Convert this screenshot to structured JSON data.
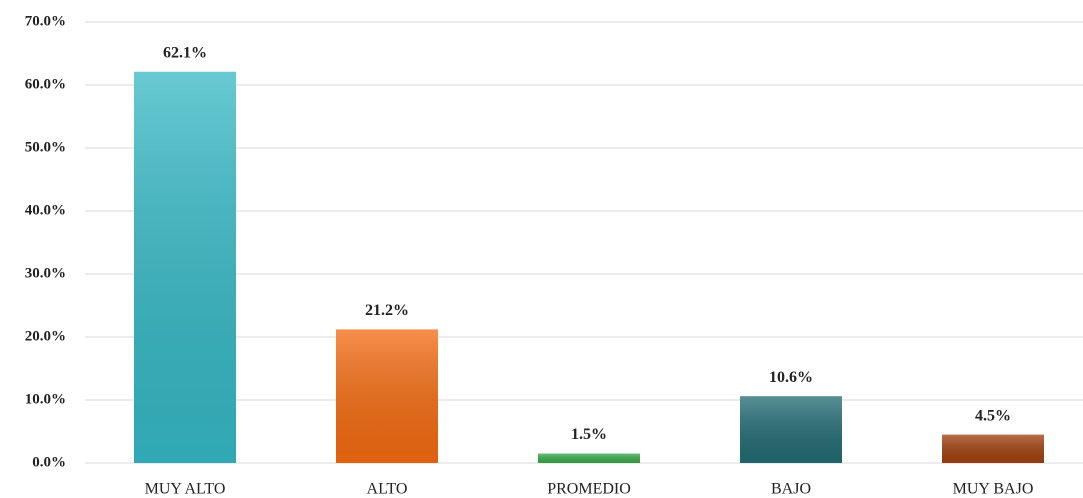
{
  "chart_data": {
    "type": "bar",
    "categories": [
      "MUY ALTO",
      "ALTO",
      "PROMEDIO",
      "BAJO",
      "MUY BAJO"
    ],
    "values": [
      62.1,
      21.2,
      1.5,
      10.6,
      4.5
    ],
    "value_labels": [
      "62.1%",
      "21.2%",
      "1.5%",
      "10.6%",
      "4.5%"
    ],
    "colors": [
      "#35b8c4",
      "#f26a10",
      "#3aa84a",
      "#226b73",
      "#a0400e"
    ],
    "ylim": [
      0,
      70
    ],
    "yticks": [
      {
        "value": 0,
        "label": "0.0%"
      },
      {
        "value": 10,
        "label": "10.0%"
      },
      {
        "value": 20,
        "label": "20.0%"
      },
      {
        "value": 30,
        "label": "30.0%"
      },
      {
        "value": 40,
        "label": "40.0%"
      },
      {
        "value": 50,
        "label": "50.0%"
      },
      {
        "value": 60,
        "label": "60.0%"
      },
      {
        "value": 70,
        "label": "70.0%"
      }
    ],
    "grid": true
  }
}
